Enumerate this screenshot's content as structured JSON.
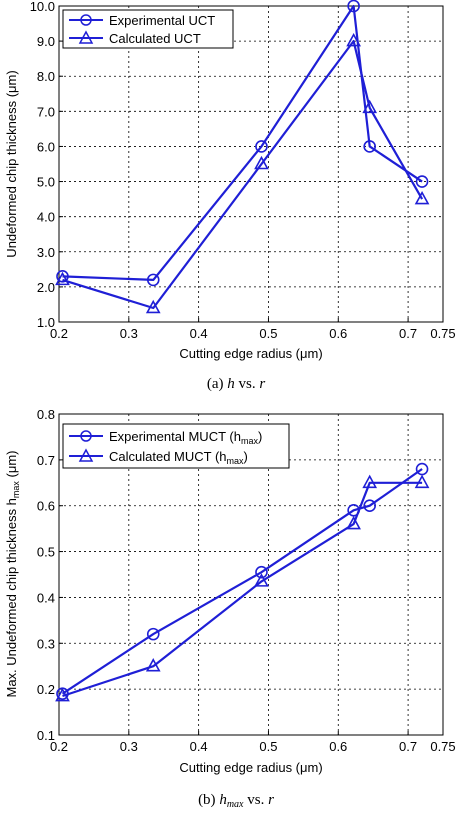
{
  "chart_data": [
    {
      "type": "line",
      "xlabel": "Cutting edge radius (μm)",
      "ylabel": "Undeformed chip thickness (μm)",
      "xlim": [
        0.2,
        0.75
      ],
      "ylim": [
        1.0,
        10.0
      ],
      "x_ticks": [
        "0.2",
        "0.3",
        "0.4",
        "0.5",
        "0.6",
        "0.7",
        "0.75"
      ],
      "x_tick_values": [
        0.2,
        0.3,
        0.4,
        0.5,
        0.6,
        0.7,
        0.75
      ],
      "y_ticks": [
        "1.0",
        "2.0",
        "3.0",
        "4.0",
        "5.0",
        "6.0",
        "7.0",
        "8.0",
        "9.0",
        "10.0"
      ],
      "y_tick_values": [
        1,
        2,
        3,
        4,
        5,
        6,
        7,
        8,
        9,
        10
      ],
      "grid": true,
      "legend_position": "top-left",
      "caption": {
        "label": "(a)",
        "h": "h",
        "vs": "vs.",
        "r": "r"
      },
      "series": [
        {
          "name": "Experimental UCT",
          "marker": "circle",
          "color": "#1f1fd6",
          "x": [
            0.205,
            0.335,
            0.49,
            0.622,
            0.645,
            0.72
          ],
          "y": [
            2.3,
            2.2,
            6.0,
            10.0,
            6.0,
            5.0
          ]
        },
        {
          "name": "Calculated UCT",
          "marker": "triangle",
          "color": "#1f1fd6",
          "x": [
            0.205,
            0.335,
            0.49,
            0.622,
            0.645,
            0.72
          ],
          "y": [
            2.2,
            1.4,
            5.5,
            9.0,
            7.1,
            4.5
          ]
        }
      ]
    },
    {
      "type": "line",
      "xlabel": "Cutting edge radius (μm)",
      "ylabel": "Max. Undeformed chip thickness hmax (μm)",
      "ylabel_parts": {
        "pre": "Max. Undeformed chip thickness h",
        "sub": "max",
        "post": " (μm)"
      },
      "xlim": [
        0.2,
        0.75
      ],
      "ylim": [
        0.1,
        0.8
      ],
      "x_ticks": [
        "0.2",
        "0.3",
        "0.4",
        "0.5",
        "0.6",
        "0.7",
        "0.75"
      ],
      "x_tick_values": [
        0.2,
        0.3,
        0.4,
        0.5,
        0.6,
        0.7,
        0.75
      ],
      "y_ticks": [
        "0.1",
        "0.2",
        "0.3",
        "0.4",
        "0.5",
        "0.6",
        "0.7",
        "0.8"
      ],
      "y_tick_values": [
        0.1,
        0.2,
        0.3,
        0.4,
        0.5,
        0.6,
        0.7,
        0.8
      ],
      "grid": true,
      "legend_position": "top-left",
      "caption": {
        "label": "(b)",
        "h": "h",
        "hsub": "max",
        "vs": "vs.",
        "r": "r"
      },
      "series": [
        {
          "name": "Experimental MUCT (hmax)",
          "name_parts": {
            "pre": "Experimental MUCT (h",
            "sub": "max",
            "post": ")"
          },
          "marker": "circle",
          "color": "#1f1fd6",
          "x": [
            0.205,
            0.335,
            0.49,
            0.622,
            0.645,
            0.72
          ],
          "y": [
            0.19,
            0.32,
            0.455,
            0.59,
            0.6,
            0.68
          ]
        },
        {
          "name": "Calculated MUCT (hmax)",
          "name_parts": {
            "pre": "Calculated MUCT (h",
            "sub": "max",
            "post": ")"
          },
          "marker": "triangle",
          "color": "#1f1fd6",
          "x": [
            0.205,
            0.335,
            0.49,
            0.622,
            0.645,
            0.72
          ],
          "y": [
            0.185,
            0.25,
            0.435,
            0.56,
            0.65,
            0.65
          ]
        }
      ]
    }
  ]
}
